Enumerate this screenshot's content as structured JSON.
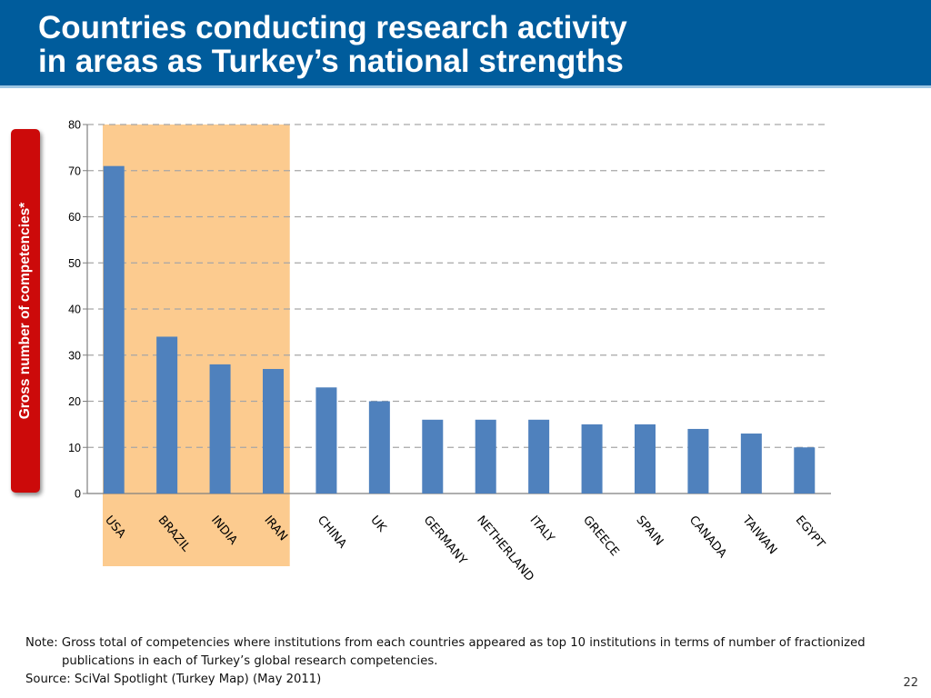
{
  "header": {
    "title_line1": "Countries conducting research activity",
    "title_line2": "in areas as Turkey’s national strengths"
  },
  "colors": {
    "header_bg": "#005c9c",
    "bar": "#4f81bd",
    "highlight": "#fccb8f",
    "ylabel_tab": "#cc0a0a"
  },
  "chart_data": {
    "type": "bar",
    "categories": [
      "USA",
      "BRAZIL",
      "INDIA",
      "IRAN",
      "CHINA",
      "UK",
      "GERMANY",
      "NETHERLAND",
      "ITALY",
      "GREECE",
      "SPAIN",
      "CANADA",
      "TAIWAN",
      "EGYPT"
    ],
    "values": [
      71,
      34,
      28,
      27,
      23,
      20,
      16,
      16,
      16,
      15,
      15,
      14,
      13,
      10
    ],
    "title": "",
    "xlabel": "",
    "ylabel": "Gross number of competencies*",
    "ylim": [
      0,
      80
    ],
    "yticks": [
      0,
      10,
      20,
      30,
      40,
      50,
      60,
      70,
      80
    ],
    "grid": true,
    "highlighted_categories": [
      "USA",
      "BRAZIL",
      "INDIA",
      "IRAN"
    ]
  },
  "note": {
    "line1": "Note: Gross total of competencies where institutions from each countries appeared as top 10 institutions in terms of number of fractionized",
    "line2": "publications in each of Turkey’s global research competencies.",
    "source": "Source: SciVal Spotlight  (Turkey Map) (May 2011)"
  },
  "page_number": "22"
}
